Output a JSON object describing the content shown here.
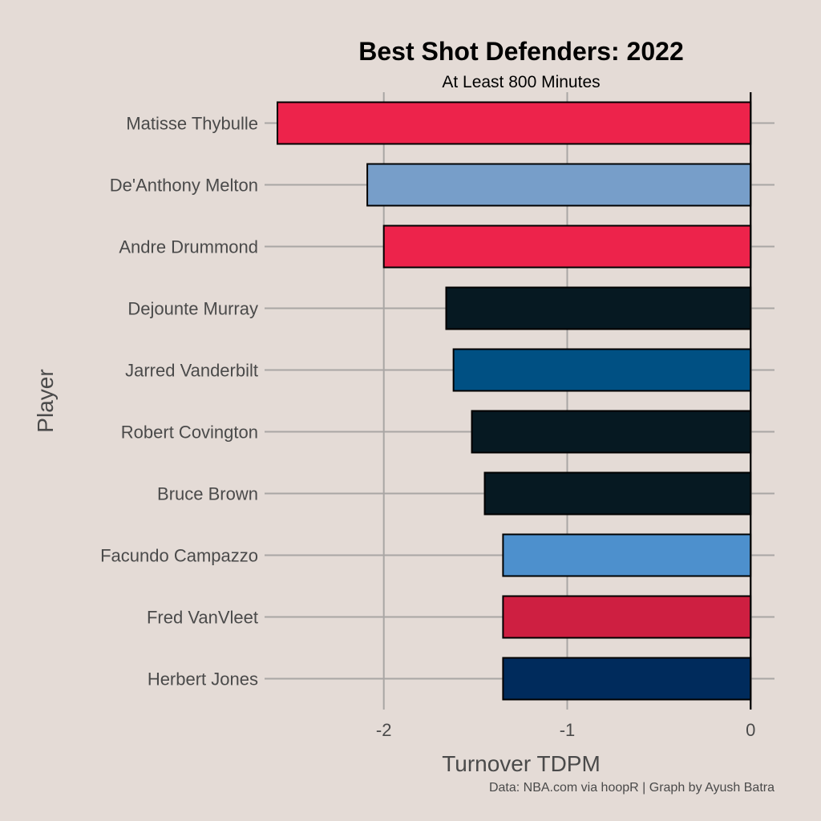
{
  "chart_data": {
    "type": "bar",
    "orientation": "horizontal",
    "title": "Best Shot Defenders: 2022",
    "subtitle": "At Least 800 Minutes",
    "xlabel": "Turnover TDPM",
    "ylabel": "Player",
    "caption": "Data: NBA.com via hoopR | Graph by Ayush Batra",
    "xlim": [
      -2.65,
      0.13
    ],
    "x_ticks": [
      -2,
      -1,
      0
    ],
    "x_tick_labels": [
      "-2",
      "-1",
      "0"
    ],
    "grid": true,
    "categories": [
      "Matisse Thybulle",
      "De'Anthony Melton",
      "Andre Drummond",
      "Dejounte Murray",
      "Jarred Vanderbilt",
      "Robert Covington",
      "Bruce Brown",
      "Facundo Campazzo",
      "Fred VanVleet",
      "Herbert Jones"
    ],
    "values": [
      -2.58,
      -2.09,
      -2.0,
      -1.66,
      -1.62,
      -1.52,
      -1.45,
      -1.35,
      -1.35,
      -1.35
    ],
    "colors": [
      "#ed234b",
      "#779ec9",
      "#ed234b",
      "#061922",
      "#005083",
      "#061922",
      "#061922",
      "#4d90cd",
      "#ce1f41",
      "#002b5c"
    ]
  }
}
